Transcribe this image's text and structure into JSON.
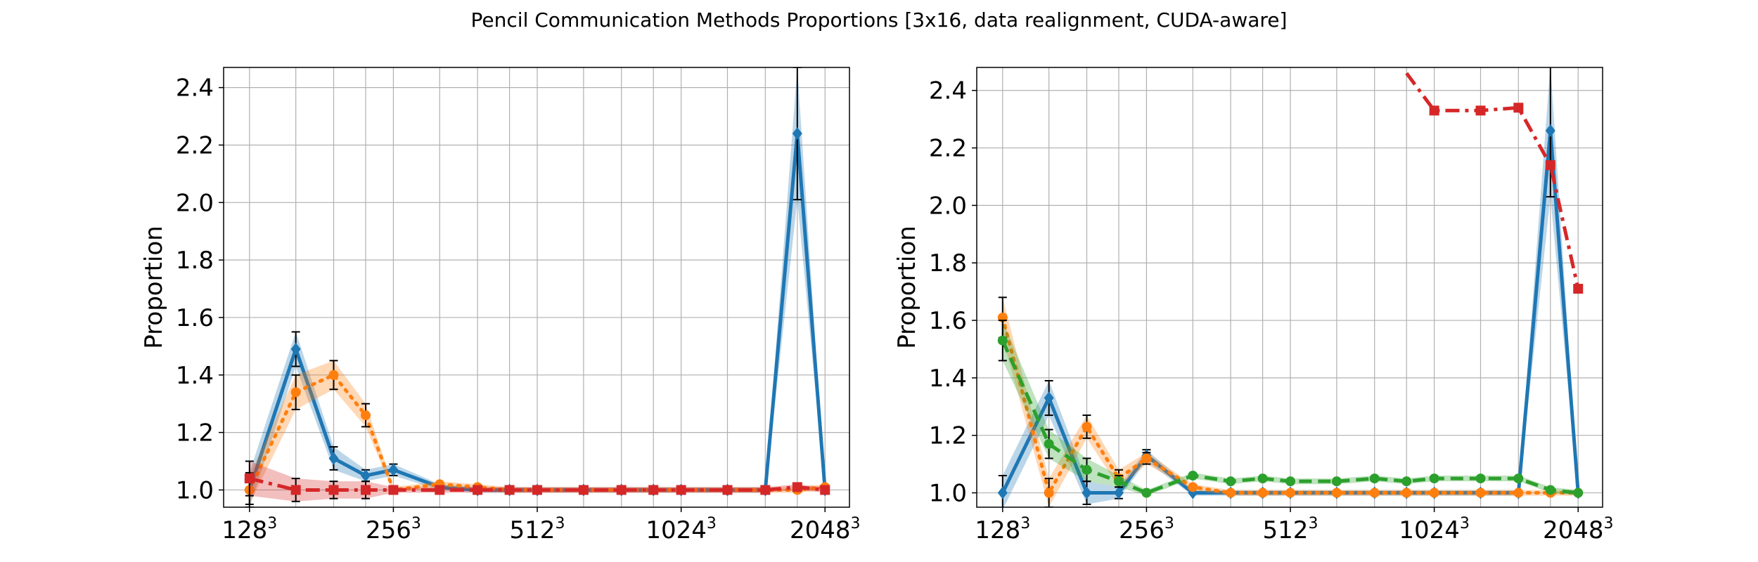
{
  "title": "Pencil Communication Methods Proportions [3x16, data realignment, CUDA-aware]",
  "colors": {
    "blue": "#1f77b4",
    "orange": "#ff7f0e",
    "green": "#2ca02c",
    "red": "#d62728",
    "grid": "#b0b0b0"
  },
  "chart_data": [
    {
      "type": "line",
      "title": "",
      "xlabel": "",
      "ylabel": "Proportion",
      "grid": true,
      "x": [
        128,
        160,
        192,
        224,
        256,
        320,
        384,
        448,
        512,
        640,
        768,
        896,
        1024,
        1280,
        1536,
        1792,
        2048
      ],
      "x_scale": "log2",
      "xlim": [
        113,
        2304
      ],
      "xticks": [
        128,
        256,
        512,
        1024,
        2048
      ],
      "xticklabels": [
        "128",
        "256",
        "512",
        "1024",
        "2048"
      ],
      "xtick_exponent": "3",
      "ylim": [
        0.94,
        2.47
      ],
      "yticks": [
        1.0,
        1.2,
        1.4,
        1.6,
        1.8,
        2.0,
        2.2,
        2.4
      ],
      "yticklabels": [
        "1.0",
        "1.2",
        "1.4",
        "1.6",
        "1.8",
        "2.0",
        "2.2",
        "2.4"
      ],
      "series": [
        {
          "color": "blue",
          "linestyle": "solid",
          "marker": "diamond",
          "values": [
            1.0,
            1.49,
            1.11,
            1.05,
            1.07,
            1.01,
            1.0,
            1.0,
            1.0,
            1.0,
            1.0,
            1.0,
            1.0,
            1.0,
            1.0,
            2.24,
            1.0
          ],
          "err": [
            0.06,
            0.06,
            0.04,
            0.02,
            0.02,
            0.01,
            0.01,
            0.01,
            0.01,
            0.01,
            0.01,
            0.01,
            0.01,
            0.01,
            0.01,
            0.23,
            0.01
          ]
        },
        {
          "color": "orange",
          "linestyle": "dotted",
          "marker": "circle",
          "values": [
            1.0,
            1.34,
            1.4,
            1.26,
            1.0,
            1.02,
            1.01,
            1.0,
            1.0,
            1.0,
            1.0,
            1.0,
            1.0,
            1.0,
            1.0,
            1.0,
            1.01
          ],
          "err": [
            0.05,
            0.06,
            0.05,
            0.04,
            0.01,
            0.01,
            0.01,
            0.01,
            0.01,
            0.01,
            0.01,
            0.01,
            0.01,
            0.01,
            0.01,
            0.01,
            0.01
          ]
        },
        {
          "color": "red",
          "linestyle": "dashdot",
          "marker": "square",
          "values": [
            1.04,
            1.0,
            1.0,
            1.0,
            1.0,
            1.0,
            1.0,
            1.0,
            1.0,
            1.0,
            1.0,
            1.0,
            1.0,
            1.0,
            1.0,
            1.01,
            1.0
          ],
          "err": [
            0.06,
            0.04,
            0.03,
            0.03,
            0.01,
            0.01,
            0.01,
            0.01,
            0.01,
            0.01,
            0.01,
            0.01,
            0.01,
            0.01,
            0.01,
            0.01,
            0.01
          ]
        }
      ]
    },
    {
      "type": "line",
      "title": "",
      "xlabel": "",
      "ylabel": "Proportion",
      "grid": true,
      "x": [
        128,
        160,
        192,
        224,
        256,
        320,
        384,
        448,
        512,
        640,
        768,
        896,
        1024,
        1280,
        1536,
        1792,
        2048
      ],
      "x_scale": "log2",
      "xlim": [
        113,
        2304
      ],
      "xticks": [
        128,
        256,
        512,
        1024,
        2048
      ],
      "xticklabels": [
        "128",
        "256",
        "512",
        "1024",
        "2048"
      ],
      "xtick_exponent": "3",
      "ylim": [
        0.95,
        2.48
      ],
      "yticks": [
        1.0,
        1.2,
        1.4,
        1.6,
        1.8,
        2.0,
        2.2,
        2.4
      ],
      "yticklabels": [
        "1.0",
        "1.2",
        "1.4",
        "1.6",
        "1.8",
        "2.0",
        "2.2",
        "2.4"
      ],
      "series": [
        {
          "color": "blue",
          "linestyle": "solid",
          "marker": "diamond",
          "values": [
            1.0,
            1.33,
            1.0,
            1.0,
            1.13,
            1.0,
            1.0,
            1.0,
            1.0,
            1.0,
            1.0,
            1.0,
            1.0,
            1.0,
            1.0,
            2.26,
            1.0
          ],
          "err": [
            0.06,
            0.06,
            0.04,
            0.02,
            0.02,
            0.01,
            0.01,
            0.01,
            0.01,
            0.01,
            0.01,
            0.01,
            0.01,
            0.01,
            0.01,
            0.23,
            0.01
          ]
        },
        {
          "color": "orange",
          "linestyle": "dotted",
          "marker": "circle",
          "values": [
            1.61,
            1.0,
            1.23,
            1.05,
            1.12,
            1.02,
            1.0,
            1.0,
            1.0,
            1.0,
            1.0,
            1.0,
            1.0,
            1.0,
            1.0,
            1.0,
            1.0
          ],
          "err": [
            0.07,
            0.05,
            0.04,
            0.03,
            0.02,
            0.01,
            0.01,
            0.01,
            0.01,
            0.01,
            0.01,
            0.01,
            0.01,
            0.01,
            0.01,
            0.01,
            0.01
          ]
        },
        {
          "color": "green",
          "linestyle": "dashed",
          "marker": "circle",
          "values": [
            1.53,
            1.17,
            1.08,
            1.04,
            1.0,
            1.06,
            1.04,
            1.05,
            1.04,
            1.04,
            1.05,
            1.04,
            1.05,
            1.05,
            1.05,
            1.01,
            1.0
          ],
          "err": [
            0.07,
            0.05,
            0.04,
            0.02,
            0.01,
            0.01,
            0.01,
            0.01,
            0.01,
            0.01,
            0.01,
            0.01,
            0.01,
            0.01,
            0.01,
            0.01,
            0.01
          ]
        },
        {
          "color": "red",
          "linestyle": "dashdot",
          "marker": "square",
          "x": [
            896,
            1024,
            1280,
            1536,
            1792,
            2048
          ],
          "values": [
            2.46,
            2.33,
            2.33,
            2.34,
            2.14,
            1.71
          ],
          "err": [
            0,
            0,
            0,
            0,
            0,
            0
          ],
          "marker_skip": [
            0
          ]
        }
      ]
    }
  ]
}
